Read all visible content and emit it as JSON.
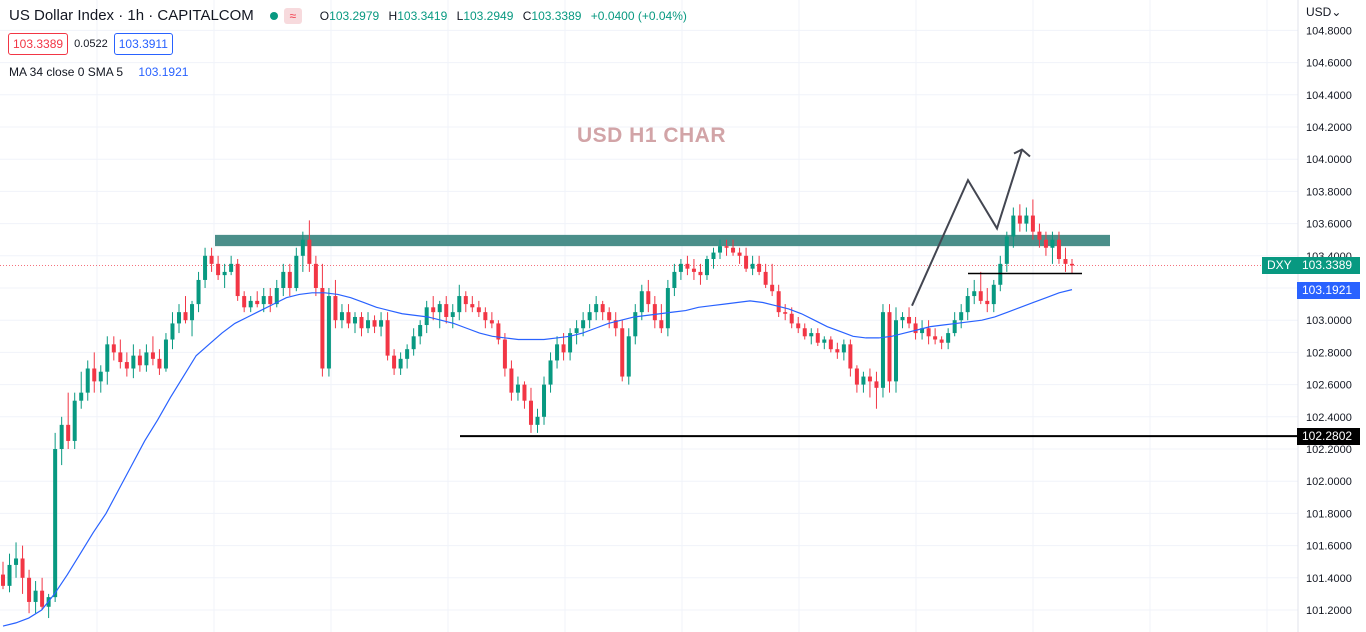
{
  "header": {
    "symbol": "US Dollar Index · 1h · CAPITALCOM",
    "wave_icon": "≈",
    "ohlc": [
      {
        "k": "O",
        "v": "103.2979"
      },
      {
        "k": "H",
        "v": "103.3419"
      },
      {
        "k": "L",
        "v": "103.2949"
      },
      {
        "k": "C",
        "v": "103.3389"
      }
    ],
    "change": "+0.0400 (+0.04%)"
  },
  "quote": {
    "bid": "103.3389",
    "spread": "0.0522",
    "ask": "103.3911"
  },
  "indicator": {
    "label": "MA 34 close 0 SMA 5",
    "value": "103.1921"
  },
  "currency": "USD",
  "currency_icon": "chevron-down-icon",
  "price_tags": {
    "symbol": "DXY",
    "last": "103.3389",
    "ma": "103.1921",
    "support_label": "102.2802"
  },
  "annotation": "USD H1 CHAR",
  "colors": {
    "up": "#089981",
    "down": "#f23645",
    "ma": "#2962ff",
    "zone": "#4b8f8a",
    "annotation": "#d2a4a7"
  },
  "chart_data": {
    "type": "candlestick",
    "timeframe": "1h",
    "ylim": [
      101.1,
      104.85
    ],
    "yticks": [
      "101.2000",
      "101.4000",
      "101.6000",
      "101.8000",
      "102.0000",
      "102.2000",
      "102.4000",
      "102.6000",
      "102.8000",
      "103.0000",
      "103.2000",
      "103.4000",
      "103.6000",
      "103.8000",
      "104.0000",
      "104.2000",
      "104.4000",
      "104.6000",
      "104.8000"
    ],
    "grid": true,
    "key_levels": [
      {
        "label": "resistance zone",
        "low": 103.46,
        "high": 103.53
      },
      {
        "label": "support",
        "value": 102.2802
      },
      {
        "label": "minor support",
        "value": 103.29
      }
    ],
    "projection_path": [
      103.09,
      103.87,
      103.57,
      104.06
    ],
    "candles": [
      [
        101.42,
        101.5,
        101.33,
        101.35
      ],
      [
        101.35,
        101.55,
        101.31,
        101.48
      ],
      [
        101.48,
        101.62,
        101.4,
        101.52
      ],
      [
        101.52,
        101.6,
        101.3,
        101.4
      ],
      [
        101.4,
        101.45,
        101.18,
        101.25
      ],
      [
        101.25,
        101.38,
        101.18,
        101.32
      ],
      [
        101.32,
        101.4,
        101.2,
        101.22
      ],
      [
        101.22,
        101.3,
        101.15,
        101.28
      ],
      [
        101.28,
        102.3,
        101.25,
        102.2
      ],
      [
        102.2,
        102.4,
        102.1,
        102.35
      ],
      [
        102.35,
        102.55,
        102.2,
        102.25
      ],
      [
        102.25,
        102.55,
        102.2,
        102.5
      ],
      [
        102.5,
        102.68,
        102.45,
        102.55
      ],
      [
        102.55,
        102.75,
        102.5,
        102.7
      ],
      [
        102.7,
        102.8,
        102.55,
        102.62
      ],
      [
        102.62,
        102.72,
        102.55,
        102.68
      ],
      [
        102.68,
        102.9,
        102.6,
        102.85
      ],
      [
        102.85,
        102.9,
        102.75,
        102.8
      ],
      [
        102.8,
        102.88,
        102.7,
        102.74
      ],
      [
        102.74,
        102.8,
        102.65,
        102.7
      ],
      [
        102.7,
        102.85,
        102.64,
        102.78
      ],
      [
        102.78,
        102.82,
        102.68,
        102.72
      ],
      [
        102.72,
        102.85,
        102.68,
        102.8
      ],
      [
        102.8,
        102.9,
        102.72,
        102.76
      ],
      [
        102.76,
        102.82,
        102.66,
        102.7
      ],
      [
        102.7,
        102.92,
        102.68,
        102.88
      ],
      [
        102.88,
        103.05,
        102.82,
        102.98
      ],
      [
        102.98,
        103.1,
        102.92,
        103.05
      ],
      [
        103.05,
        103.15,
        102.98,
        103.0
      ],
      [
        103.0,
        103.12,
        102.9,
        103.1
      ],
      [
        103.1,
        103.3,
        103.05,
        103.25
      ],
      [
        103.25,
        103.45,
        103.2,
        103.4
      ],
      [
        103.4,
        103.45,
        103.3,
        103.35
      ],
      [
        103.35,
        103.4,
        103.25,
        103.28
      ],
      [
        103.28,
        103.35,
        103.2,
        103.3
      ],
      [
        103.3,
        103.4,
        103.28,
        103.35
      ],
      [
        103.35,
        103.38,
        103.12,
        103.15
      ],
      [
        103.15,
        103.18,
        103.05,
        103.08
      ],
      [
        103.08,
        103.15,
        103.05,
        103.12
      ],
      [
        103.12,
        103.18,
        103.08,
        103.1
      ],
      [
        103.1,
        103.2,
        103.05,
        103.15
      ],
      [
        103.15,
        103.2,
        103.05,
        103.1
      ],
      [
        103.1,
        103.25,
        103.08,
        103.2
      ],
      [
        103.2,
        103.35,
        103.15,
        103.3
      ],
      [
        103.3,
        103.35,
        103.15,
        103.2
      ],
      [
        103.2,
        103.45,
        103.18,
        103.4
      ],
      [
        103.4,
        103.55,
        103.3,
        103.5
      ],
      [
        103.5,
        103.62,
        103.3,
        103.35
      ],
      [
        103.35,
        103.4,
        103.15,
        103.2
      ],
      [
        103.2,
        103.35,
        102.65,
        102.7
      ],
      [
        102.7,
        103.2,
        102.65,
        103.15
      ],
      [
        103.15,
        103.25,
        102.95,
        103.0
      ],
      [
        103.0,
        103.1,
        102.95,
        103.05
      ],
      [
        103.05,
        103.1,
        102.95,
        102.98
      ],
      [
        102.98,
        103.05,
        102.92,
        103.02
      ],
      [
        103.02,
        103.05,
        102.9,
        102.95
      ],
      [
        102.95,
        103.05,
        102.92,
        103.0
      ],
      [
        103.0,
        103.03,
        102.92,
        102.96
      ],
      [
        102.96,
        103.05,
        102.9,
        103.0
      ],
      [
        103.0,
        103.05,
        102.75,
        102.78
      ],
      [
        102.78,
        102.82,
        102.66,
        102.7
      ],
      [
        102.7,
        102.8,
        102.66,
        102.76
      ],
      [
        102.76,
        102.85,
        102.7,
        102.82
      ],
      [
        102.82,
        102.95,
        102.78,
        102.9
      ],
      [
        102.9,
        103.0,
        102.85,
        102.97
      ],
      [
        102.97,
        103.12,
        102.92,
        103.08
      ],
      [
        103.08,
        103.15,
        103.0,
        103.05
      ],
      [
        103.05,
        103.12,
        102.95,
        103.1
      ],
      [
        103.1,
        103.15,
        102.98,
        103.02
      ],
      [
        103.02,
        103.1,
        102.95,
        103.05
      ],
      [
        103.05,
        103.22,
        103.0,
        103.15
      ],
      [
        103.15,
        103.18,
        103.05,
        103.1
      ],
      [
        103.1,
        103.15,
        103.05,
        103.08
      ],
      [
        103.08,
        103.12,
        103.02,
        103.05
      ],
      [
        103.05,
        103.08,
        102.95,
        103.0
      ],
      [
        103.0,
        103.05,
        102.95,
        102.98
      ],
      [
        102.98,
        103.0,
        102.85,
        102.88
      ],
      [
        102.88,
        102.92,
        102.65,
        102.7
      ],
      [
        102.7,
        102.75,
        102.5,
        102.55
      ],
      [
        102.55,
        102.65,
        102.5,
        102.6
      ],
      [
        102.6,
        102.62,
        102.45,
        102.5
      ],
      [
        102.5,
        102.58,
        102.3,
        102.35
      ],
      [
        102.35,
        102.45,
        102.3,
        102.4
      ],
      [
        102.4,
        102.65,
        102.35,
        102.6
      ],
      [
        102.6,
        102.8,
        102.55,
        102.75
      ],
      [
        102.75,
        102.9,
        102.7,
        102.85
      ],
      [
        102.85,
        102.92,
        102.75,
        102.8
      ],
      [
        102.8,
        102.95,
        102.75,
        102.92
      ],
      [
        102.92,
        103.0,
        102.85,
        102.95
      ],
      [
        102.95,
        103.05,
        102.9,
        103.0
      ],
      [
        103.0,
        103.1,
        102.95,
        103.05
      ],
      [
        103.05,
        103.15,
        103.0,
        103.1
      ],
      [
        103.1,
        103.12,
        103.0,
        103.05
      ],
      [
        103.05,
        103.08,
        102.95,
        103.0
      ],
      [
        103.0,
        103.05,
        102.9,
        102.95
      ],
      [
        102.95,
        103.0,
        102.62,
        102.65
      ],
      [
        102.65,
        102.95,
        102.6,
        102.9
      ],
      [
        102.9,
        103.1,
        102.85,
        103.05
      ],
      [
        103.05,
        103.22,
        103.0,
        103.18
      ],
      [
        103.18,
        103.25,
        103.05,
        103.1
      ],
      [
        103.1,
        103.15,
        102.95,
        103.0
      ],
      [
        103.0,
        103.1,
        102.92,
        102.95
      ],
      [
        102.95,
        103.25,
        102.9,
        103.2
      ],
      [
        103.2,
        103.35,
        103.15,
        103.3
      ],
      [
        103.3,
        103.38,
        103.25,
        103.35
      ],
      [
        103.35,
        103.4,
        103.28,
        103.32
      ],
      [
        103.32,
        103.38,
        103.25,
        103.3
      ],
      [
        103.3,
        103.35,
        103.22,
        103.28
      ],
      [
        103.28,
        103.4,
        103.25,
        103.38
      ],
      [
        103.38,
        103.45,
        103.32,
        103.42
      ],
      [
        103.42,
        103.5,
        103.38,
        103.46
      ],
      [
        103.46,
        103.5,
        103.4,
        103.45
      ],
      [
        103.45,
        103.5,
        103.4,
        103.42
      ],
      [
        103.42,
        103.45,
        103.35,
        103.4
      ],
      [
        103.4,
        103.45,
        103.3,
        103.32
      ],
      [
        103.32,
        103.4,
        103.28,
        103.35
      ],
      [
        103.35,
        103.4,
        103.28,
        103.3
      ],
      [
        103.3,
        103.35,
        103.2,
        103.22
      ],
      [
        103.22,
        103.35,
        103.15,
        103.18
      ],
      [
        103.18,
        103.22,
        103.02,
        103.05
      ],
      [
        103.05,
        103.1,
        103.0,
        103.04
      ],
      [
        103.04,
        103.08,
        102.95,
        102.98
      ],
      [
        102.98,
        103.02,
        102.92,
        102.95
      ],
      [
        102.95,
        102.98,
        102.88,
        102.9
      ],
      [
        102.9,
        102.95,
        102.85,
        102.92
      ],
      [
        102.92,
        102.95,
        102.84,
        102.86
      ],
      [
        102.86,
        102.9,
        102.82,
        102.88
      ],
      [
        102.88,
        102.9,
        102.8,
        102.82
      ],
      [
        102.82,
        102.86,
        102.76,
        102.8
      ],
      [
        102.8,
        102.88,
        102.75,
        102.85
      ],
      [
        102.85,
        102.88,
        102.65,
        102.7
      ],
      [
        102.7,
        102.72,
        102.55,
        102.6
      ],
      [
        102.6,
        102.68,
        102.55,
        102.65
      ],
      [
        102.65,
        102.7,
        102.52,
        102.62
      ],
      [
        102.62,
        102.68,
        102.45,
        102.58
      ],
      [
        102.58,
        103.1,
        102.52,
        103.05
      ],
      [
        103.05,
        103.1,
        102.55,
        102.62
      ],
      [
        102.62,
        103.08,
        102.55,
        103.0
      ],
      [
        103.0,
        103.05,
        102.95,
        103.02
      ],
      [
        103.02,
        103.08,
        102.95,
        102.98
      ],
      [
        102.98,
        103.02,
        102.88,
        102.92
      ],
      [
        102.92,
        103.0,
        102.88,
        102.95
      ],
      [
        102.95,
        103.0,
        102.85,
        102.9
      ],
      [
        102.9,
        102.95,
        102.85,
        102.88
      ],
      [
        102.88,
        102.9,
        102.82,
        102.86
      ],
      [
        102.86,
        102.95,
        102.82,
        102.92
      ],
      [
        102.92,
        103.05,
        102.9,
        103.0
      ],
      [
        103.0,
        103.1,
        102.95,
        103.05
      ],
      [
        103.05,
        103.2,
        103.0,
        103.15
      ],
      [
        103.15,
        103.25,
        103.1,
        103.18
      ],
      [
        103.18,
        103.3,
        103.1,
        103.12
      ],
      [
        103.12,
        103.2,
        103.05,
        103.1
      ],
      [
        103.1,
        103.25,
        103.05,
        103.22
      ],
      [
        103.22,
        103.4,
        103.18,
        103.35
      ],
      [
        103.35,
        103.55,
        103.3,
        103.52
      ],
      [
        103.52,
        103.7,
        103.45,
        103.65
      ],
      [
        103.65,
        103.72,
        103.55,
        103.6
      ],
      [
        103.6,
        103.7,
        103.55,
        103.65
      ],
      [
        103.65,
        103.75,
        103.5,
        103.55
      ],
      [
        103.55,
        103.6,
        103.45,
        103.5
      ],
      [
        103.5,
        103.55,
        103.4,
        103.45
      ],
      [
        103.45,
        103.55,
        103.35,
        103.5
      ],
      [
        103.5,
        103.55,
        103.35,
        103.38
      ],
      [
        103.38,
        103.45,
        103.3,
        103.35
      ],
      [
        103.35,
        103.38,
        103.29,
        103.34
      ]
    ],
    "ma_34": [
      101.1,
      101.12,
      101.15,
      101.2,
      101.3,
      101.42,
      101.55,
      101.68,
      101.8,
      101.95,
      102.1,
      102.25,
      102.38,
      102.52,
      102.65,
      102.78,
      102.85,
      102.92,
      102.98,
      103.02,
      103.06,
      103.1,
      103.14,
      103.16,
      103.17,
      103.17,
      103.16,
      103.14,
      103.11,
      103.08,
      103.06,
      103.04,
      103.03,
      103.02,
      103.0,
      102.98,
      102.95,
      102.92,
      102.9,
      102.89,
      102.88,
      102.88,
      102.88,
      102.89,
      102.9,
      102.92,
      102.95,
      102.98,
      103.0,
      103.02,
      103.03,
      103.04,
      103.05,
      103.06,
      103.08,
      103.09,
      103.1,
      103.11,
      103.12,
      103.11,
      103.09,
      103.07,
      103.04,
      103.0,
      102.96,
      102.93,
      102.9,
      102.89,
      102.89,
      102.9,
      102.92,
      102.94,
      102.96,
      102.97,
      102.98,
      102.99,
      103.0,
      103.02,
      103.05,
      103.08,
      103.11,
      103.14,
      103.17,
      103.19
    ]
  }
}
